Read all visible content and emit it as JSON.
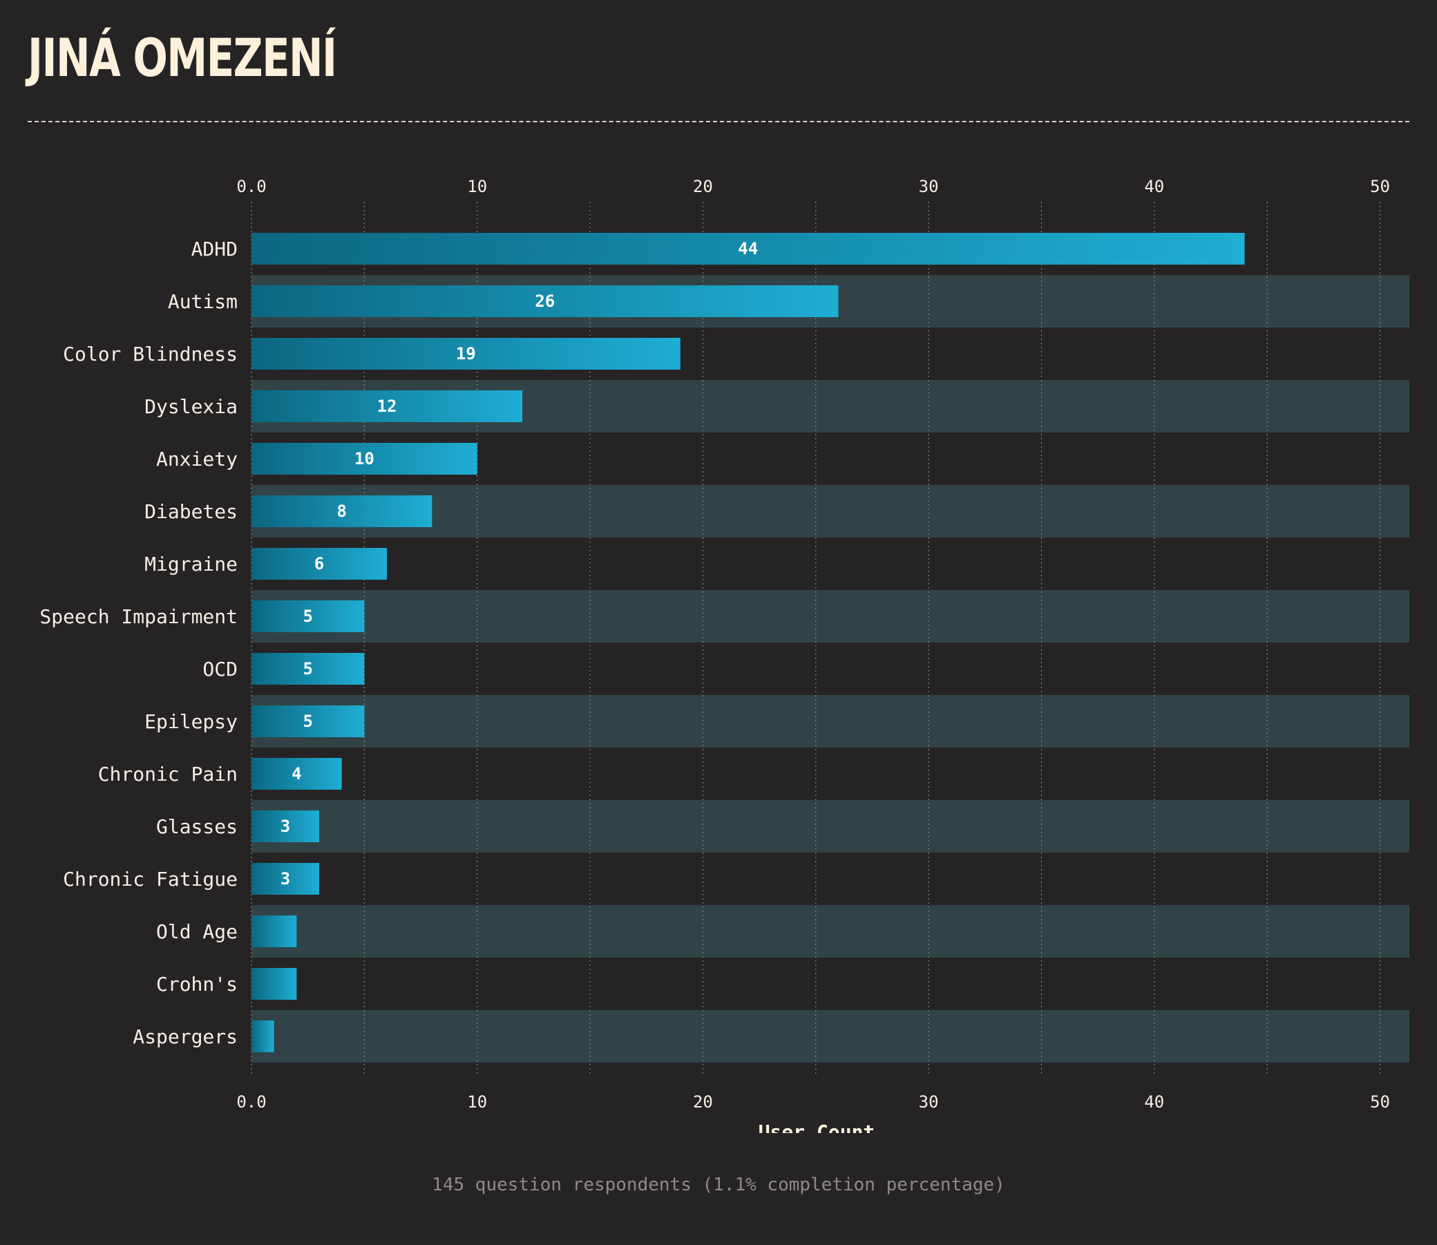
{
  "header": {
    "title": "JINÁ OMEZENÍ"
  },
  "footer": {
    "note": "145 question respondents (1.1% completion percentage)"
  },
  "colors": {
    "background": "#262325",
    "band": "#314347",
    "bar_start": "#0c6781",
    "bar_end": "#1faed5",
    "title": "#fdf1dc"
  },
  "chart_data": {
    "type": "bar",
    "orientation": "horizontal",
    "title": "JINÁ OMEZENÍ",
    "xlabel": "User Count",
    "ylabel": "",
    "xlim": [
      0,
      51.3
    ],
    "x_ticks": [
      0,
      10,
      20,
      30,
      40,
      50
    ],
    "x_tick_labels": [
      "0.0",
      "10",
      "20",
      "30",
      "40",
      "50"
    ],
    "grid": true,
    "categories": [
      "ADHD",
      "Autism",
      "Color Blindness",
      "Dyslexia",
      "Anxiety",
      "Diabetes",
      "Migraine",
      "Speech Impairment",
      "OCD",
      "Epilepsy",
      "Chronic Pain",
      "Glasses",
      "Chronic Fatigue",
      "Old Age",
      "Crohn's",
      "Aspergers"
    ],
    "values": [
      44,
      26,
      19,
      12,
      10,
      8,
      6,
      5,
      5,
      5,
      4,
      3,
      3,
      2,
      2,
      1
    ],
    "data_labels": [
      "44",
      "26",
      "19",
      "12",
      "10",
      "8",
      "6",
      "5",
      "5",
      "5",
      "4",
      "3",
      "3",
      "",
      "",
      ""
    ]
  }
}
